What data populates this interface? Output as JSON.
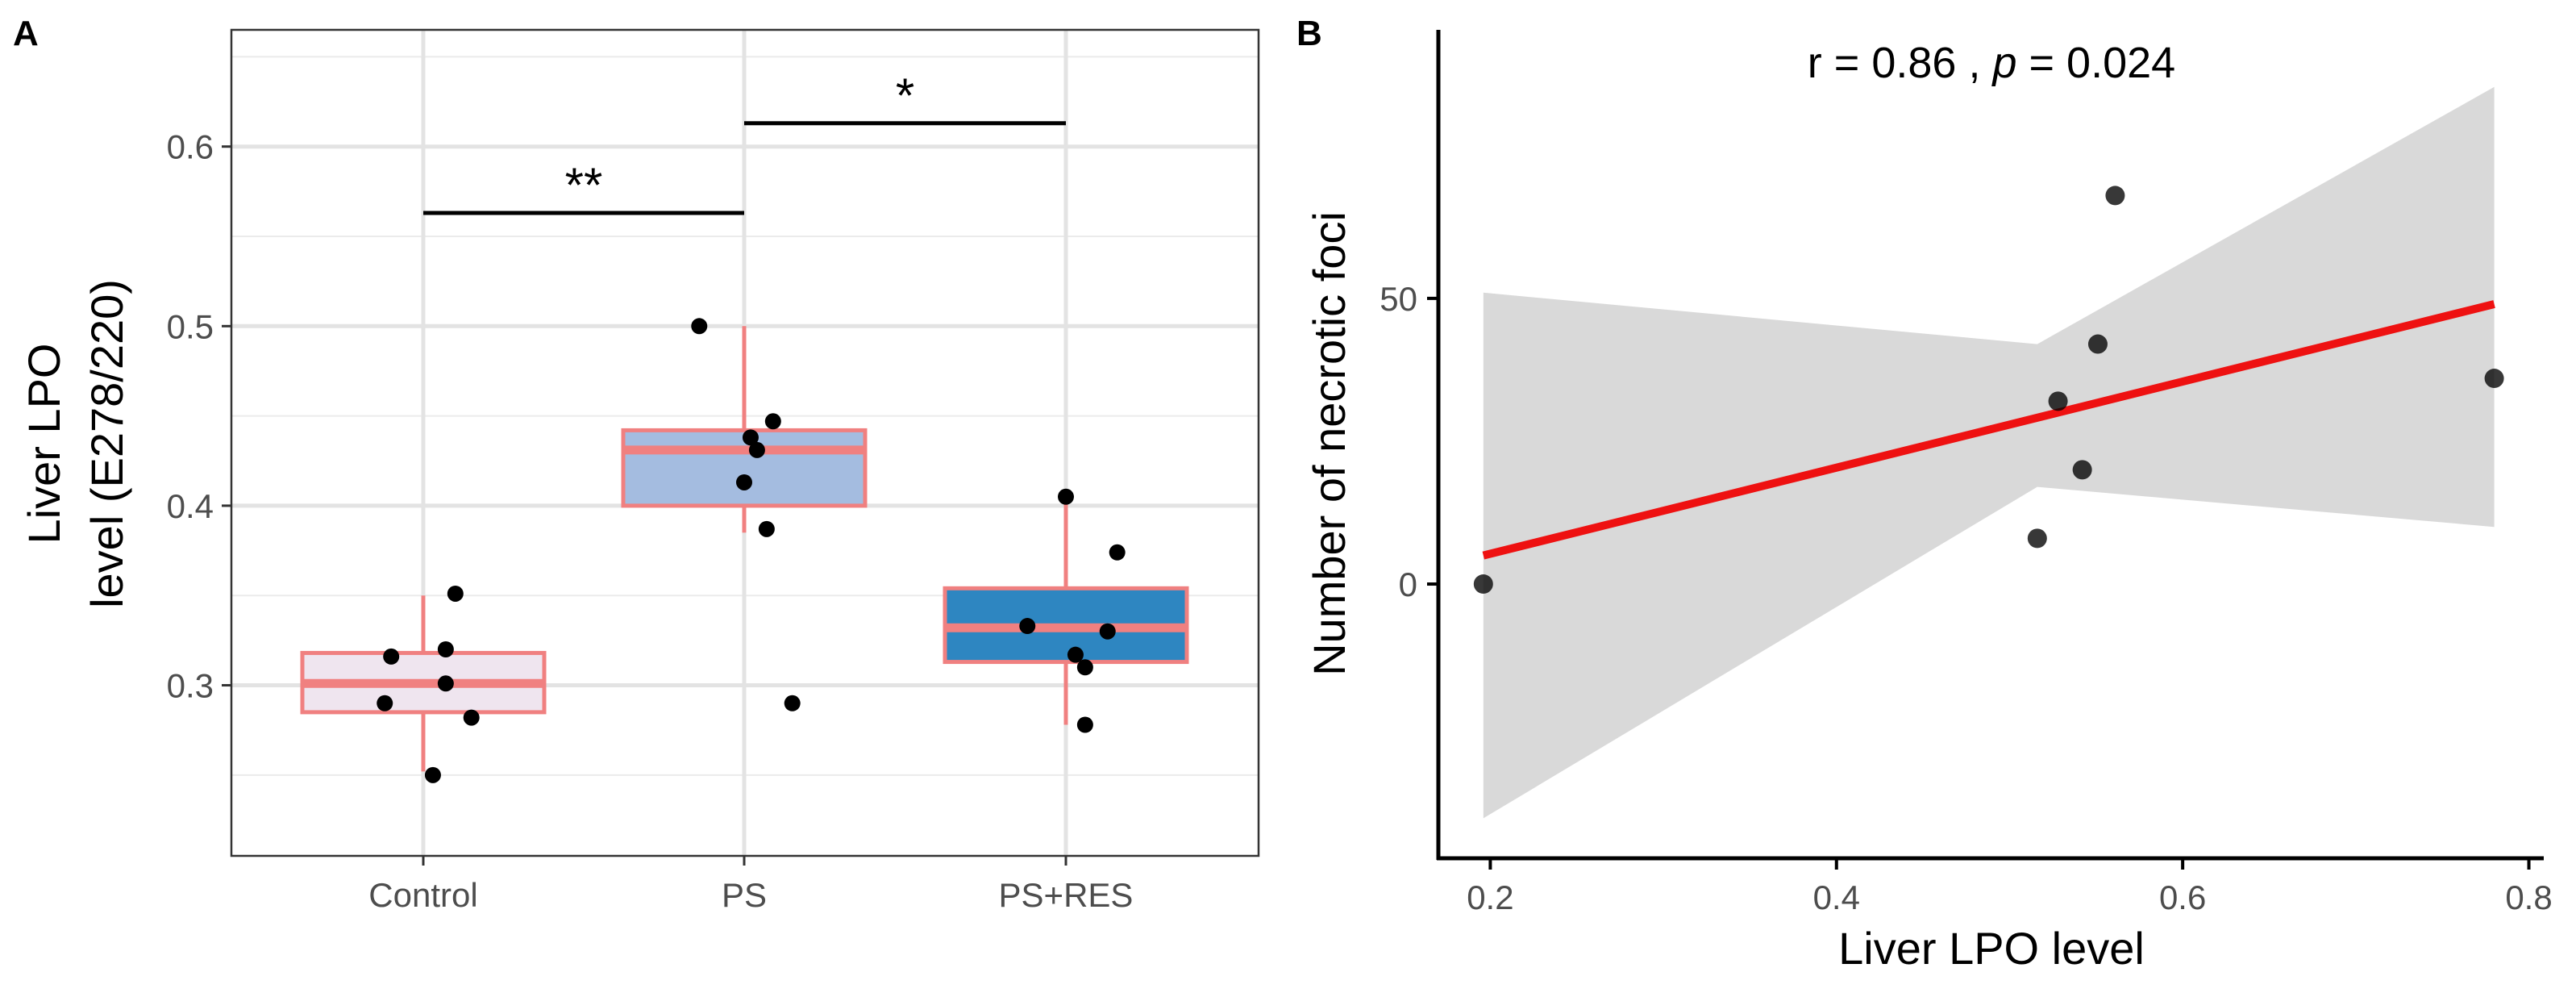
{
  "chart_data": [
    {
      "panel": "A",
      "type": "box",
      "xlabel": "",
      "ylabel_lines": [
        "Liver LPO",
        "level (E278/220)"
      ],
      "ylim": [
        0.205,
        0.665
      ],
      "yticks": [
        0.3,
        0.4,
        0.5,
        0.6
      ],
      "ytick_labels": [
        "0.3",
        "0.4",
        "0.5",
        "0.6"
      ],
      "grid": true,
      "categories": [
        "Control",
        "PS",
        "PS+RES"
      ],
      "boxes": [
        {
          "name": "Control",
          "q1": 0.285,
          "median": 0.301,
          "q3": 0.318,
          "whisker_low": 0.252,
          "whisker_high": 0.35,
          "fill": "#efe5ef",
          "border": "#f08080",
          "points": [
            [
              -0.12,
              0.29
            ],
            [
              -0.1,
              0.316
            ],
            [
              0.03,
              0.25
            ],
            [
              0.07,
              0.301
            ],
            [
              0.07,
              0.32
            ],
            [
              0.1,
              0.351
            ],
            [
              0.15,
              0.282
            ]
          ]
        },
        {
          "name": "PS",
          "q1": 0.4,
          "median": 0.431,
          "q3": 0.442,
          "whisker_low": 0.385,
          "whisker_high": 0.5,
          "fill": "#a4bce0",
          "border": "#f08080",
          "points": [
            [
              -0.14,
              0.5
            ],
            [
              0.0,
              0.413
            ],
            [
              0.02,
              0.438
            ],
            [
              0.04,
              0.431
            ],
            [
              0.07,
              0.387
            ],
            [
              0.09,
              0.447
            ],
            [
              0.15,
              0.29
            ]
          ]
        },
        {
          "name": "PS+RES",
          "q1": 0.313,
          "median": 0.332,
          "q3": 0.354,
          "whisker_low": 0.278,
          "whisker_high": 0.405,
          "fill": "#2e86c1",
          "border": "#f08080",
          "points": [
            [
              -0.12,
              0.333
            ],
            [
              0.0,
              0.405
            ],
            [
              0.03,
              0.317
            ],
            [
              0.06,
              0.31
            ],
            [
              0.06,
              0.278
            ],
            [
              0.13,
              0.33
            ],
            [
              0.16,
              0.374
            ]
          ]
        }
      ],
      "significance": [
        {
          "from": "Control",
          "to": "PS",
          "y": 0.563,
          "label": "**"
        },
        {
          "from": "PS",
          "to": "PS+RES",
          "y": 0.613,
          "label": "*"
        }
      ]
    },
    {
      "panel": "B",
      "type": "scatter",
      "xlabel": "Liver LPO level",
      "ylabel": "Number of necrotic foci",
      "xlim": [
        0.17,
        0.81
      ],
      "ylim": [
        -48,
        97
      ],
      "xticks": [
        0.2,
        0.4,
        0.6,
        0.8
      ],
      "xtick_labels": [
        "0.2",
        "0.4",
        "0.6",
        "0.8"
      ],
      "yticks": [
        0,
        50
      ],
      "ytick_labels": [
        "0",
        "50"
      ],
      "grid": false,
      "points": [
        [
          0.196,
          0
        ],
        [
          0.516,
          8
        ],
        [
          0.528,
          32
        ],
        [
          0.542,
          20
        ],
        [
          0.551,
          42
        ],
        [
          0.561,
          68
        ],
        [
          0.78,
          36
        ]
      ],
      "fit_line": {
        "x": [
          0.196,
          0.78
        ],
        "y": [
          5,
          49
        ],
        "color": "#ee1111"
      },
      "confidence_band": {
        "x": [
          0.196,
          0.516,
          0.78
        ],
        "lower": [
          -41,
          17,
          10
        ],
        "upper": [
          51,
          42,
          87
        ],
        "color": "#d9d9d9"
      },
      "annotation": {
        "r_label": "r",
        "r_value": "0.86",
        "p_label": "p",
        "p_value": "0.024"
      }
    }
  ]
}
